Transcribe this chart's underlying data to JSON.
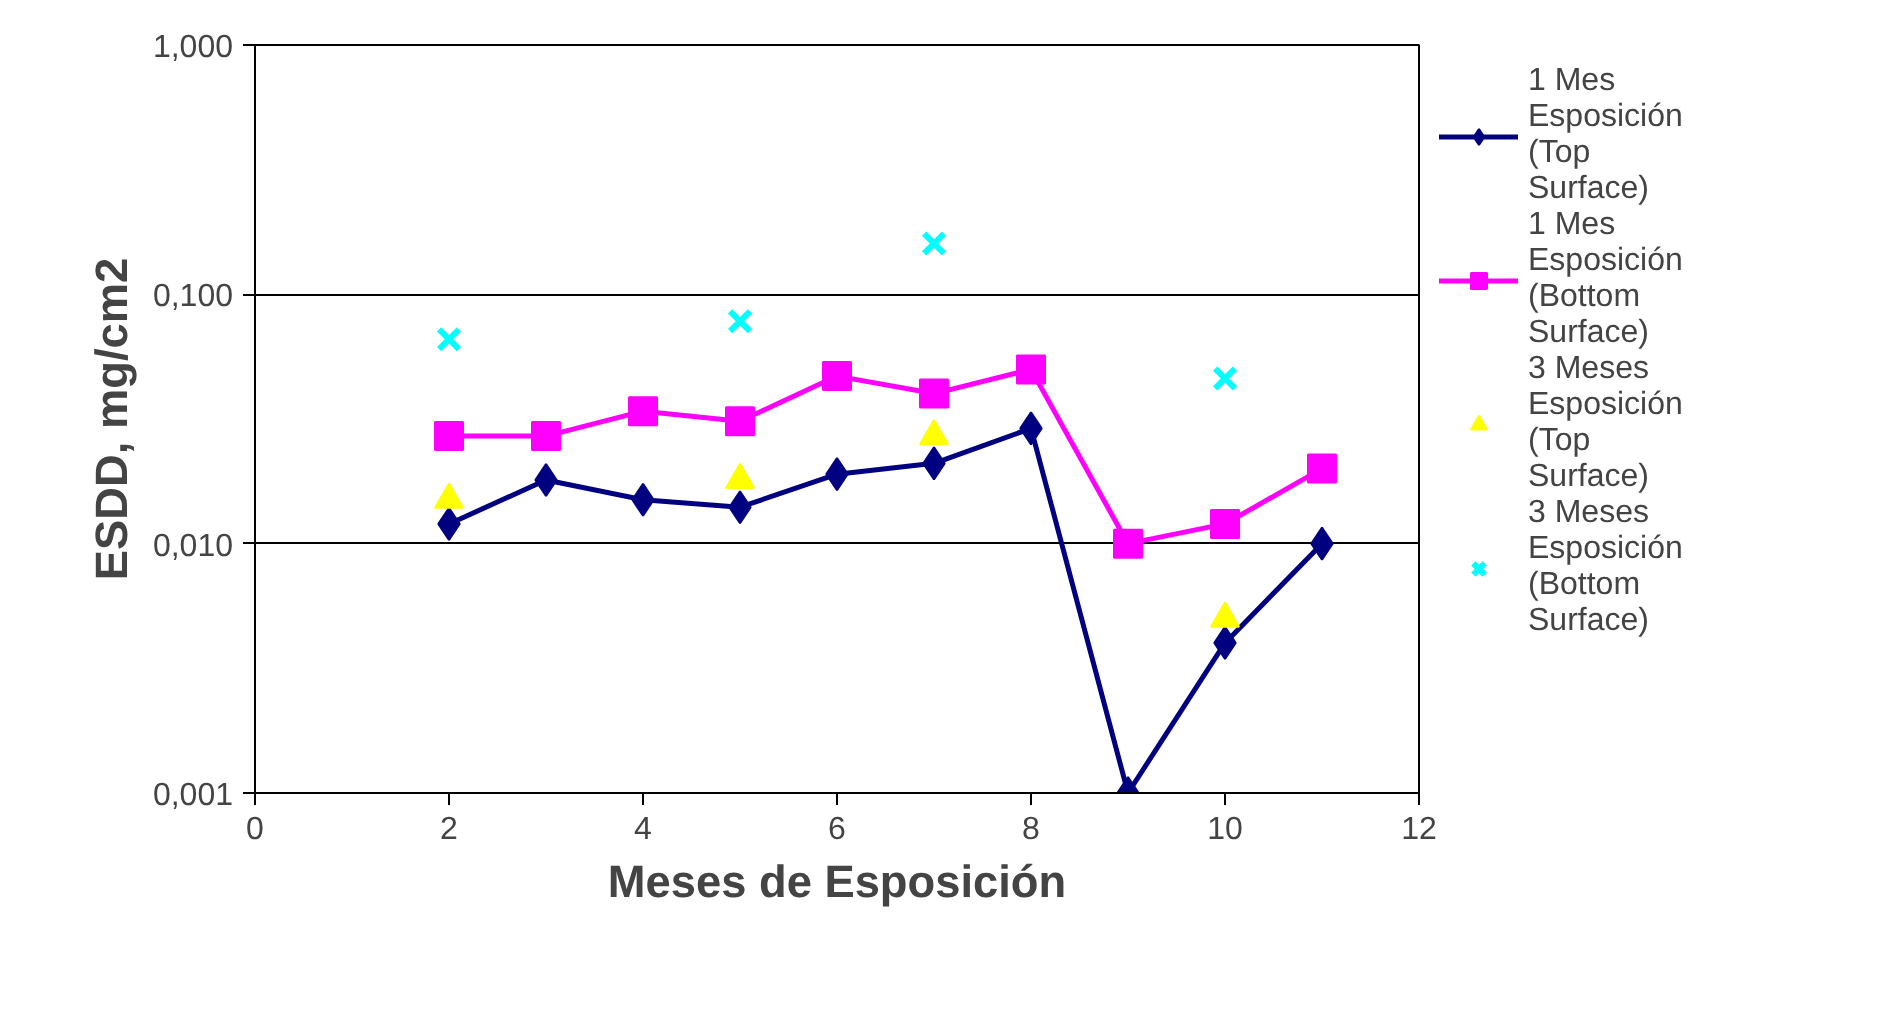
{
  "chart_data": {
    "type": "line",
    "xlabel": "Meses de Esposición",
    "ylabel": "ESDD, mg/cm2",
    "log": true,
    "xlim": [
      0,
      12
    ],
    "xticks": [
      0,
      2,
      4,
      6,
      8,
      10,
      12
    ],
    "ylim": [
      0.001,
      1
    ],
    "yticks": [
      {
        "value": 0.001,
        "label": "0,001"
      },
      {
        "value": 0.01,
        "label": "0,010"
      },
      {
        "value": 0.1,
        "label": "0,100"
      },
      {
        "value": 1,
        "label": "1,000"
      }
    ],
    "grid": "y",
    "legend": "right",
    "series": [
      {
        "name": "1 Mes Esposición (Top Surface)",
        "marker": "diamond",
        "color": "#000080",
        "x": [
          2,
          3,
          4,
          5,
          6,
          7,
          8,
          9,
          10,
          11
        ],
        "values": [
          0.012,
          0.018,
          0.015,
          0.014,
          0.019,
          0.021,
          0.029,
          0.001,
          0.004,
          0.01
        ]
      },
      {
        "name": "1 Mes Esposición (Bottom Surface)",
        "marker": "square",
        "color": "#ff00ff",
        "x": [
          2,
          3,
          4,
          5,
          6,
          7,
          8,
          9,
          10,
          11
        ],
        "values": [
          0.027,
          0.027,
          0.034,
          0.031,
          0.047,
          0.04,
          0.05,
          0.01,
          0.012,
          0.02
        ]
      },
      {
        "name": "3 Meses Esposición (Top Surface)",
        "type": "scatter",
        "marker": "triangle",
        "color": "#ffff00",
        "x": [
          2,
          5,
          7,
          10
        ],
        "values": [
          0.015,
          0.018,
          0.027,
          0.005
        ]
      },
      {
        "name": "3 Meses Esposición (Bottom Surface)",
        "type": "scatter",
        "marker": "cross",
        "color": "#00ffff",
        "x": [
          2,
          5,
          7,
          10
        ],
        "values": [
          0.066,
          0.078,
          0.16,
          0.046
        ]
      }
    ]
  }
}
